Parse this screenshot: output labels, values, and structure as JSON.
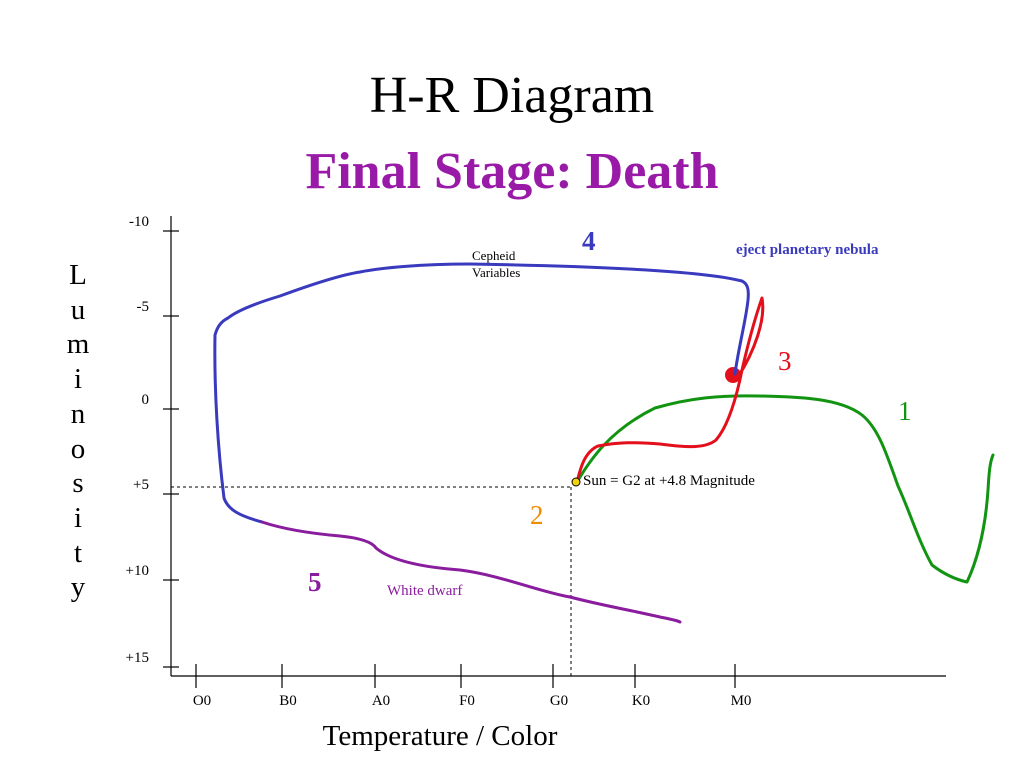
{
  "title": "H-R Diagram",
  "subtitle": "Final Stage: Death",
  "ylabel": "Luminosity",
  "xlabel": "Temperature / Color",
  "colors": {
    "title": "#000000",
    "subtitle": "#9a1aa8"
  },
  "chart_data": {
    "type": "diagram",
    "y_axis": {
      "ticks": [
        "-10",
        "-5",
        "0",
        "+5",
        "+10",
        "+15"
      ],
      "range": [
        -10,
        15
      ]
    },
    "x_axis": {
      "ticks": [
        "O0",
        "B0",
        "A0",
        "F0",
        "G0",
        "K0",
        "M0"
      ]
    },
    "sun": {
      "label": "Sun = G2 at +4.8 Magnitude",
      "spectral_class": "G2",
      "magnitude": 4.8
    },
    "stages": [
      {
        "number": "1",
        "color": "#129412"
      },
      {
        "number": "2",
        "color": "#f08c00"
      },
      {
        "number": "3",
        "color": "#e3101c"
      },
      {
        "number": "4",
        "color": "#3a3abf"
      },
      {
        "number": "5",
        "color": "#8a1c9e"
      }
    ],
    "annotations": {
      "cepheid_line1": "Cepheid",
      "cepheid_line2": "Variables",
      "planetary_nebula": "eject planetary nebula",
      "white_dwarf": "White dwarf"
    }
  }
}
